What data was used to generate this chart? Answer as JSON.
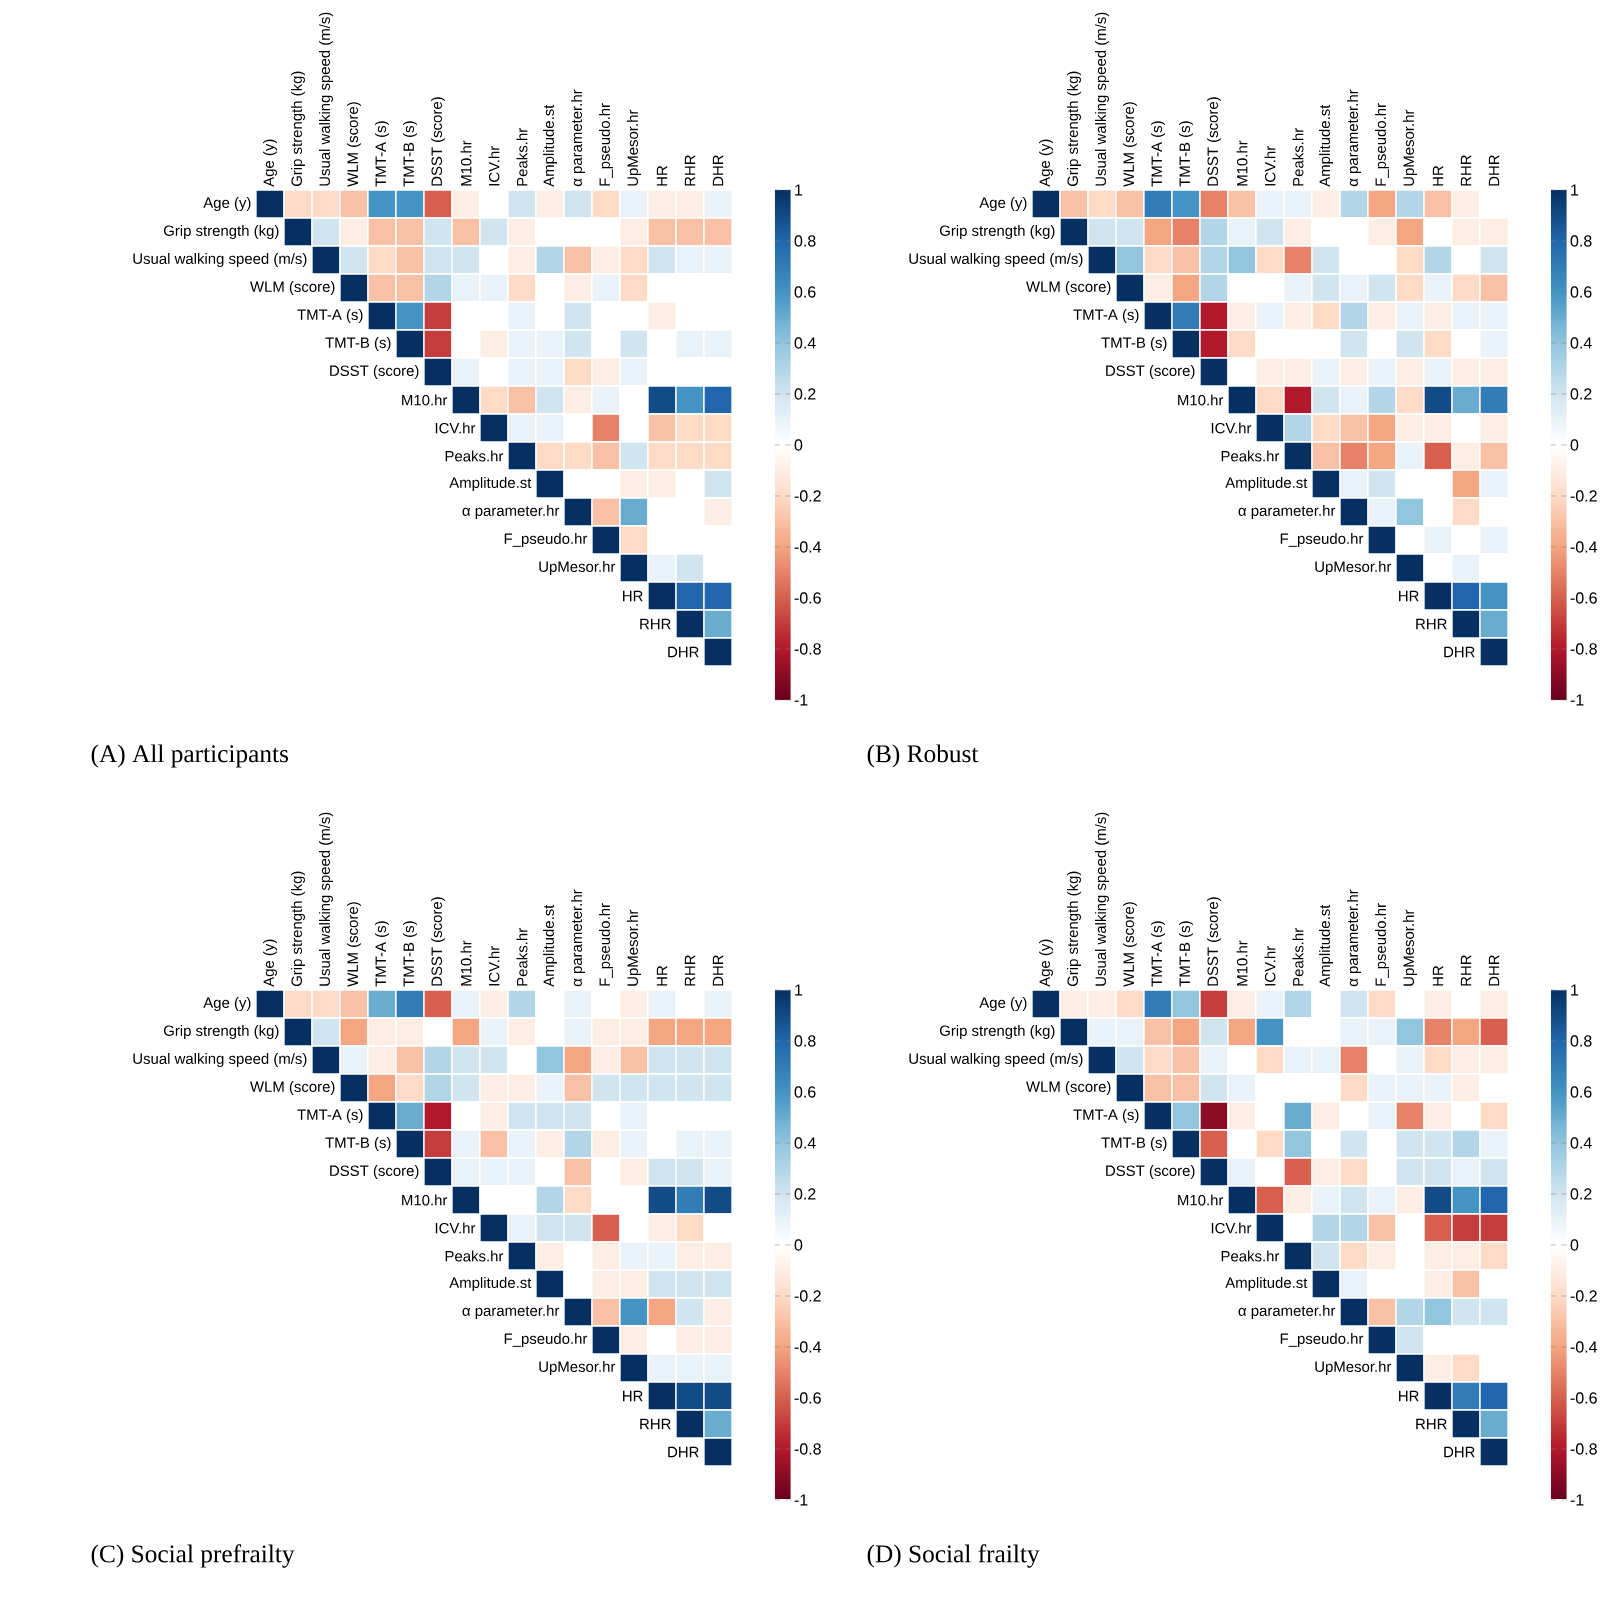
{
  "chart_data": [
    {
      "type": "heatmap",
      "title": "(A)  All participants",
      "categories": [
        "Age (y)",
        "Grip strength (kg)",
        "Usual walking speed (m/s)",
        "WLM (score)",
        "TMT-A (s)",
        "TMT-B (s)",
        "DSST (score)",
        "M10.hr",
        "ICV.hr",
        "Peaks.hr",
        "Amplitude.st",
        "α parameter.hr",
        "F_pseudo.hr",
        "UpMesor.hr",
        "HR",
        "RHR",
        "DHR"
      ],
      "y_categories": [
        "Age (y)",
        "Grip strength (kg)",
        "Usual walking speed (m/s)",
        "WLM (score)",
        "TMT-A (s)",
        "TMT-B (s)",
        "DSST (score)",
        "M10.hr",
        "ICV.hr",
        "Peaks.hr",
        "Amplitude.st",
        "α parameter.hr",
        "F_pseudo.hr",
        "UpMesor.hr",
        "HR",
        "RHR",
        "DHR"
      ],
      "clim": [
        -1,
        1
      ],
      "cticks": [
        -1,
        -0.8,
        -0.6,
        -0.4,
        -0.2,
        0,
        0.2,
        0.4,
        0.6,
        0.8,
        1
      ],
      "cells": [
        [
          1,
          -0.2,
          -0.2,
          -0.3,
          0.6,
          0.6,
          -0.6,
          -0.1,
          0,
          0.2,
          -0.1,
          0.2,
          -0.2,
          0.1,
          -0.1,
          -0.1,
          0.1
        ],
        [
          null,
          1,
          0.2,
          -0.1,
          -0.3,
          -0.3,
          0.2,
          -0.3,
          0.2,
          -0.1,
          0,
          0,
          0,
          -0.1,
          -0.3,
          -0.3,
          -0.3
        ],
        [
          null,
          null,
          1,
          0.2,
          -0.2,
          -0.3,
          0.2,
          0.2,
          0,
          -0.1,
          0.3,
          -0.3,
          -0.1,
          -0.2,
          0.2,
          0.1,
          0.1
        ],
        [
          null,
          null,
          null,
          1,
          -0.3,
          -0.3,
          0.3,
          0.1,
          0.1,
          -0.2,
          0,
          -0.1,
          0.1,
          -0.2,
          0,
          0,
          0
        ],
        [
          null,
          null,
          null,
          null,
          1,
          0.6,
          -0.7,
          0,
          0,
          0.1,
          0,
          0.2,
          0,
          0,
          -0.1,
          0,
          0
        ],
        [
          null,
          null,
          null,
          null,
          null,
          1,
          -0.7,
          0,
          -0.1,
          0.1,
          0.1,
          0.2,
          0,
          0.2,
          0,
          0.1,
          0.1
        ],
        [
          null,
          null,
          null,
          null,
          null,
          null,
          1,
          0.1,
          0,
          0.1,
          0.1,
          -0.2,
          -0.1,
          0.1,
          0,
          0,
          0
        ],
        [
          null,
          null,
          null,
          null,
          null,
          null,
          null,
          1,
          -0.2,
          -0.3,
          0.2,
          -0.1,
          0.1,
          0,
          0.9,
          0.6,
          0.8
        ],
        [
          null,
          null,
          null,
          null,
          null,
          null,
          null,
          null,
          1,
          0.1,
          0.1,
          0,
          -0.5,
          0,
          -0.3,
          -0.2,
          -0.2
        ],
        [
          null,
          null,
          null,
          null,
          null,
          null,
          null,
          null,
          null,
          1,
          -0.2,
          -0.2,
          -0.3,
          0.2,
          -0.2,
          -0.2,
          -0.2
        ],
        [
          null,
          null,
          null,
          null,
          null,
          null,
          null,
          null,
          null,
          null,
          1,
          0,
          0,
          -0.1,
          -0.1,
          0,
          0.2
        ],
        [
          null,
          null,
          null,
          null,
          null,
          null,
          null,
          null,
          null,
          null,
          null,
          1,
          -0.3,
          0.5,
          0,
          0,
          -0.1
        ],
        [
          null,
          null,
          null,
          null,
          null,
          null,
          null,
          null,
          null,
          null,
          null,
          null,
          1,
          -0.2,
          0,
          0,
          0
        ],
        [
          null,
          null,
          null,
          null,
          null,
          null,
          null,
          null,
          null,
          null,
          null,
          null,
          null,
          1,
          0.1,
          0.2,
          0
        ],
        [
          null,
          null,
          null,
          null,
          null,
          null,
          null,
          null,
          null,
          null,
          null,
          null,
          null,
          null,
          1,
          0.8,
          0.8
        ],
        [
          null,
          null,
          null,
          null,
          null,
          null,
          null,
          null,
          null,
          null,
          null,
          null,
          null,
          null,
          null,
          1,
          0.5
        ],
        [
          null,
          null,
          null,
          null,
          null,
          null,
          null,
          null,
          null,
          null,
          null,
          null,
          null,
          null,
          null,
          null,
          1
        ]
      ]
    },
    {
      "type": "heatmap",
      "title": "(B) Robust",
      "categories": [
        "Age (y)",
        "Grip strength (kg)",
        "Usual walking speed (m/s)",
        "WLM (score)",
        "TMT-A (s)",
        "TMT-B (s)",
        "DSST (score)",
        "M10.hr",
        "ICV.hr",
        "Peaks.hr",
        "Amplitude.st",
        "α parameter.hr",
        "F_pseudo.hr",
        "UpMesor.hr",
        "HR",
        "RHR",
        "DHR"
      ],
      "y_categories": [
        "Age (y)",
        "Grip strength (kg)",
        "Usual walking speed (m/s)",
        "WLM (score)",
        "TMT-A (s)",
        "TMT-B (s)",
        "DSST (score)",
        "M10.hr",
        "ICV.hr",
        "Peaks.hr",
        "Amplitude.st",
        "α parameter.hr",
        "F_pseudo.hr",
        "UpMesor.hr",
        "HR",
        "RHR",
        "DHR"
      ],
      "clim": [
        -1,
        1
      ],
      "cticks": [
        -1,
        -0.8,
        -0.6,
        -0.4,
        -0.2,
        0,
        0.2,
        0.4,
        0.6,
        0.8,
        1
      ],
      "cells": [
        [
          1,
          -0.3,
          -0.2,
          -0.3,
          0.7,
          0.6,
          -0.5,
          -0.3,
          0.1,
          0.1,
          -0.1,
          0.3,
          -0.4,
          0.3,
          -0.3,
          -0.1,
          0
        ],
        [
          null,
          1,
          0.2,
          0.2,
          -0.4,
          -0.5,
          0.3,
          0.1,
          0.2,
          -0.1,
          0,
          0,
          -0.1,
          -0.4,
          0,
          -0.1,
          -0.1
        ],
        [
          null,
          null,
          1,
          0.4,
          -0.2,
          -0.3,
          0.3,
          0.4,
          -0.2,
          -0.5,
          0.2,
          0,
          0,
          -0.2,
          0.3,
          0,
          0.2
        ],
        [
          null,
          null,
          null,
          1,
          -0.1,
          -0.4,
          0.3,
          0,
          0,
          0.1,
          0.2,
          0.1,
          0.2,
          -0.2,
          0.1,
          -0.2,
          -0.3
        ],
        [
          null,
          null,
          null,
          null,
          1,
          0.7,
          -0.8,
          -0.1,
          0.1,
          -0.1,
          -0.2,
          0.3,
          -0.1,
          0.1,
          -0.1,
          0.1,
          0.1
        ],
        [
          null,
          null,
          null,
          null,
          null,
          1,
          -0.8,
          -0.2,
          0,
          0,
          0,
          0.2,
          0,
          0.2,
          -0.2,
          0,
          0.1
        ],
        [
          null,
          null,
          null,
          null,
          null,
          null,
          1,
          0,
          -0.1,
          -0.1,
          0.1,
          -0.1,
          0.1,
          -0.1,
          0.1,
          -0.1,
          -0.1
        ],
        [
          null,
          null,
          null,
          null,
          null,
          null,
          null,
          1,
          -0.2,
          -0.8,
          0.2,
          0.1,
          0.3,
          -0.2,
          0.9,
          0.5,
          0.7
        ],
        [
          null,
          null,
          null,
          null,
          null,
          null,
          null,
          null,
          1,
          0.3,
          -0.2,
          -0.3,
          -0.4,
          -0.1,
          -0.1,
          0,
          -0.1
        ],
        [
          null,
          null,
          null,
          null,
          null,
          null,
          null,
          null,
          null,
          1,
          -0.3,
          -0.5,
          -0.4,
          0.1,
          -0.6,
          -0.1,
          -0.3
        ],
        [
          null,
          null,
          null,
          null,
          null,
          null,
          null,
          null,
          null,
          null,
          1,
          0.1,
          0.2,
          0,
          0,
          -0.4,
          0.1
        ],
        [
          null,
          null,
          null,
          null,
          null,
          null,
          null,
          null,
          null,
          null,
          null,
          1,
          0.1,
          0.4,
          0,
          -0.2,
          0
        ],
        [
          null,
          null,
          null,
          null,
          null,
          null,
          null,
          null,
          null,
          null,
          null,
          null,
          1,
          0,
          0.1,
          0,
          0.1
        ],
        [
          null,
          null,
          null,
          null,
          null,
          null,
          null,
          null,
          null,
          null,
          null,
          null,
          null,
          1,
          0,
          0.1,
          0
        ],
        [
          null,
          null,
          null,
          null,
          null,
          null,
          null,
          null,
          null,
          null,
          null,
          null,
          null,
          null,
          1,
          0.8,
          0.6
        ],
        [
          null,
          null,
          null,
          null,
          null,
          null,
          null,
          null,
          null,
          null,
          null,
          null,
          null,
          null,
          null,
          1,
          0.5
        ],
        [
          null,
          null,
          null,
          null,
          null,
          null,
          null,
          null,
          null,
          null,
          null,
          null,
          null,
          null,
          null,
          null,
          1
        ]
      ]
    },
    {
      "type": "heatmap",
      "title": "(C) Social prefrailty",
      "categories": [
        "Age (y)",
        "Grip strength (kg)",
        "Usual walking speed (m/s)",
        "WLM (score)",
        "TMT-A (s)",
        "TMT-B (s)",
        "DSST (score)",
        "M10.hr",
        "ICV.hr",
        "Peaks.hr",
        "Amplitude.st",
        "α parameter.hr",
        "F_pseudo.hr",
        "UpMesor.hr",
        "HR",
        "RHR",
        "DHR"
      ],
      "y_categories": [
        "Age (y)",
        "Grip strength (kg)",
        "Usual walking speed (m/s)",
        "WLM (score)",
        "TMT-A (s)",
        "TMT-B (s)",
        "DSST (score)",
        "M10.hr",
        "ICV.hr",
        "Peaks.hr",
        "Amplitude.st",
        "α parameter.hr",
        "F_pseudo.hr",
        "UpMesor.hr",
        "HR",
        "RHR",
        "DHR"
      ],
      "clim": [
        -1,
        1
      ],
      "cticks": [
        -1,
        -0.8,
        -0.6,
        -0.4,
        -0.2,
        0,
        0.2,
        0.4,
        0.6,
        0.8,
        1
      ],
      "cells": [
        [
          1,
          -0.2,
          -0.2,
          -0.3,
          0.5,
          0.7,
          -0.6,
          0.1,
          -0.1,
          0.3,
          0,
          0.1,
          0,
          -0.1,
          0.1,
          0,
          0.1
        ],
        [
          null,
          1,
          0.2,
          -0.4,
          -0.1,
          -0.1,
          0,
          -0.4,
          0.1,
          -0.1,
          0,
          0.1,
          -0.1,
          -0.1,
          -0.4,
          -0.4,
          -0.4
        ],
        [
          null,
          null,
          1,
          0.1,
          -0.1,
          -0.3,
          0.3,
          0.2,
          0.2,
          0,
          0.4,
          -0.4,
          -0.1,
          -0.3,
          0.2,
          0.2,
          0.2
        ],
        [
          null,
          null,
          null,
          1,
          -0.4,
          -0.2,
          0.3,
          0.2,
          -0.1,
          -0.1,
          0.1,
          -0.3,
          0.2,
          0.2,
          0.2,
          0.2,
          0.2
        ],
        [
          null,
          null,
          null,
          null,
          1,
          0.5,
          -0.8,
          0,
          -0.1,
          0.2,
          0.2,
          0.2,
          0,
          0.1,
          0,
          0,
          0
        ],
        [
          null,
          null,
          null,
          null,
          null,
          1,
          -0.7,
          0.1,
          -0.3,
          0.1,
          -0.1,
          0.3,
          -0.1,
          0.1,
          0,
          0.1,
          0.1
        ],
        [
          null,
          null,
          null,
          null,
          null,
          null,
          1,
          0.1,
          0.1,
          0.1,
          0,
          -0.3,
          0,
          -0.1,
          0.2,
          0.2,
          0.1
        ],
        [
          null,
          null,
          null,
          null,
          null,
          null,
          null,
          1,
          0,
          0,
          0.3,
          -0.2,
          0,
          0,
          0.9,
          0.7,
          0.9
        ],
        [
          null,
          null,
          null,
          null,
          null,
          null,
          null,
          null,
          1,
          0.1,
          0.2,
          0.2,
          -0.6,
          0,
          -0.1,
          -0.2,
          0
        ],
        [
          null,
          null,
          null,
          null,
          null,
          null,
          null,
          null,
          null,
          1,
          -0.1,
          0,
          -0.1,
          0.1,
          0.1,
          -0.1,
          -0.1
        ],
        [
          null,
          null,
          null,
          null,
          null,
          null,
          null,
          null,
          null,
          null,
          1,
          0,
          -0.1,
          -0.1,
          0.2,
          0.2,
          0.2
        ],
        [
          null,
          null,
          null,
          null,
          null,
          null,
          null,
          null,
          null,
          null,
          null,
          1,
          -0.3,
          0.6,
          -0.4,
          0.2,
          -0.1
        ],
        [
          null,
          null,
          null,
          null,
          null,
          null,
          null,
          null,
          null,
          null,
          null,
          null,
          1,
          -0.1,
          0,
          -0.1,
          -0.1
        ],
        [
          null,
          null,
          null,
          null,
          null,
          null,
          null,
          null,
          null,
          null,
          null,
          null,
          null,
          1,
          0.1,
          0.1,
          0.1
        ],
        [
          null,
          null,
          null,
          null,
          null,
          null,
          null,
          null,
          null,
          null,
          null,
          null,
          null,
          null,
          1,
          0.9,
          0.9
        ],
        [
          null,
          null,
          null,
          null,
          null,
          null,
          null,
          null,
          null,
          null,
          null,
          null,
          null,
          null,
          null,
          1,
          0.5
        ],
        [
          null,
          null,
          null,
          null,
          null,
          null,
          null,
          null,
          null,
          null,
          null,
          null,
          null,
          null,
          null,
          null,
          1
        ]
      ]
    },
    {
      "type": "heatmap",
      "title": "(D) Social frailty",
      "categories": [
        "Age (y)",
        "Grip strength (kg)",
        "Usual walking speed (m/s)",
        "WLM (score)",
        "TMT-A (s)",
        "TMT-B (s)",
        "DSST (score)",
        "M10.hr",
        "ICV.hr",
        "Peaks.hr",
        "Amplitude.st",
        "α parameter.hr",
        "F_pseudo.hr",
        "UpMesor.hr",
        "HR",
        "RHR",
        "DHR"
      ],
      "y_categories": [
        "Age (y)",
        "Grip strength (kg)",
        "Usual walking speed (m/s)",
        "WLM (score)",
        "TMT-A (s)",
        "TMT-B (s)",
        "DSST (score)",
        "M10.hr",
        "ICV.hr",
        "Peaks.hr",
        "Amplitude.st",
        "α parameter.hr",
        "F_pseudo.hr",
        "UpMesor.hr",
        "HR",
        "RHR",
        "DHR"
      ],
      "clim": [
        -1,
        1
      ],
      "cticks": [
        -1,
        -0.8,
        -0.6,
        -0.4,
        -0.2,
        0,
        0.2,
        0.4,
        0.6,
        0.8,
        1
      ],
      "cells": [
        [
          1,
          -0.1,
          -0.1,
          -0.2,
          0.7,
          0.4,
          -0.7,
          -0.1,
          0.1,
          0.3,
          0,
          0.2,
          -0.2,
          0,
          -0.1,
          0,
          -0.1
        ],
        [
          null,
          1,
          0.1,
          0.1,
          -0.3,
          -0.4,
          0.2,
          -0.4,
          0.6,
          0,
          0,
          0.1,
          0.1,
          0.4,
          -0.5,
          -0.4,
          -0.6
        ],
        [
          null,
          null,
          1,
          0.2,
          -0.2,
          -0.3,
          0.1,
          0,
          -0.2,
          0.1,
          0.1,
          -0.5,
          0,
          0.1,
          -0.2,
          -0.1,
          -0.1
        ],
        [
          null,
          null,
          null,
          1,
          -0.3,
          -0.3,
          0.2,
          0.1,
          0,
          0,
          0,
          -0.2,
          0.1,
          0.1,
          0.1,
          -0.1,
          0
        ],
        [
          null,
          null,
          null,
          null,
          1,
          0.4,
          -0.9,
          -0.1,
          0,
          0.5,
          -0.1,
          0,
          0.1,
          -0.5,
          -0.1,
          0,
          -0.2
        ],
        [
          null,
          null,
          null,
          null,
          null,
          1,
          -0.6,
          0,
          -0.2,
          0.4,
          0,
          0.2,
          0,
          0.2,
          0.2,
          0.3,
          0.1
        ],
        [
          null,
          null,
          null,
          null,
          null,
          null,
          1,
          0.1,
          0,
          -0.6,
          -0.1,
          -0.2,
          0,
          0.2,
          0.2,
          0.1,
          0.2
        ],
        [
          null,
          null,
          null,
          null,
          null,
          null,
          null,
          1,
          -0.6,
          -0.1,
          0.1,
          0.2,
          0.1,
          -0.1,
          0.9,
          0.6,
          0.8
        ],
        [
          null,
          null,
          null,
          null,
          null,
          null,
          null,
          null,
          1,
          0,
          0.3,
          0.3,
          -0.3,
          0,
          -0.6,
          -0.7,
          -0.7
        ],
        [
          null,
          null,
          null,
          null,
          null,
          null,
          null,
          null,
          null,
          1,
          0.2,
          -0.2,
          -0.1,
          0,
          -0.1,
          -0.1,
          -0.2
        ],
        [
          null,
          null,
          null,
          null,
          null,
          null,
          null,
          null,
          null,
          null,
          1,
          0.1,
          0,
          0,
          -0.1,
          -0.3,
          0
        ],
        [
          null,
          null,
          null,
          null,
          null,
          null,
          null,
          null,
          null,
          null,
          null,
          1,
          -0.3,
          0.3,
          0.4,
          0.2,
          0.2
        ],
        [
          null,
          null,
          null,
          null,
          null,
          null,
          null,
          null,
          null,
          null,
          null,
          null,
          1,
          0.2,
          0,
          0,
          0
        ],
        [
          null,
          null,
          null,
          null,
          null,
          null,
          null,
          null,
          null,
          null,
          null,
          null,
          null,
          1,
          -0.1,
          -0.2,
          0
        ],
        [
          null,
          null,
          null,
          null,
          null,
          null,
          null,
          null,
          null,
          null,
          null,
          null,
          null,
          null,
          1,
          0.7,
          0.8
        ],
        [
          null,
          null,
          null,
          null,
          null,
          null,
          null,
          null,
          null,
          null,
          null,
          null,
          null,
          null,
          null,
          1,
          0.5
        ],
        [
          null,
          null,
          null,
          null,
          null,
          null,
          null,
          null,
          null,
          null,
          null,
          null,
          null,
          null,
          null,
          null,
          1
        ]
      ]
    }
  ]
}
